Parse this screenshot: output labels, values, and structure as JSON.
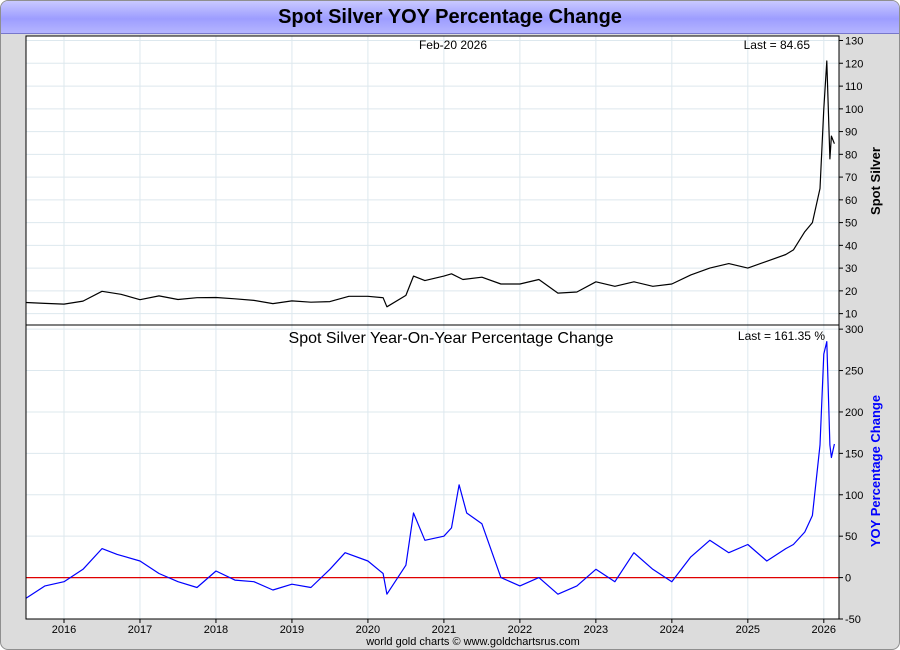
{
  "title": "Spot Silver YOY Percentage Change",
  "footer": "world gold charts © www.goldchartsrus.com",
  "chart_data": [
    {
      "type": "line",
      "ylabel": "Spot Silver",
      "date_label": "Feb-20  2026",
      "last_label": "Last = 84.65",
      "color": "#000000",
      "ylim": [
        5,
        132
      ],
      "yticks": [
        10,
        20,
        30,
        40,
        50,
        60,
        70,
        80,
        90,
        100,
        110,
        120,
        130
      ],
      "x_years": [
        "2016",
        "2017",
        "2018",
        "2019",
        "2020",
        "2021",
        "2022",
        "2023",
        "2024",
        "2025",
        "2026"
      ],
      "x": [
        2015.5,
        2015.75,
        2016.0,
        2016.25,
        2016.5,
        2016.75,
        2017.0,
        2017.25,
        2017.5,
        2017.75,
        2018.0,
        2018.25,
        2018.5,
        2018.75,
        2019.0,
        2019.25,
        2019.5,
        2019.75,
        2020.0,
        2020.2,
        2020.25,
        2020.5,
        2020.6,
        2020.75,
        2021.0,
        2021.1,
        2021.25,
        2021.5,
        2021.75,
        2022.0,
        2022.25,
        2022.5,
        2022.75,
        2023.0,
        2023.25,
        2023.5,
        2023.75,
        2024.0,
        2024.25,
        2024.5,
        2024.75,
        2025.0,
        2025.25,
        2025.5,
        2025.6,
        2025.75,
        2025.85,
        2025.95,
        2026.0,
        2026.04,
        2026.08,
        2026.1,
        2026.14
      ],
      "y": [
        14.9,
        14.5,
        14.2,
        15.5,
        19.8,
        18.5,
        16.1,
        17.8,
        16.2,
        17.0,
        17.1,
        16.5,
        15.8,
        14.4,
        15.6,
        15.0,
        15.3,
        17.6,
        17.6,
        17.0,
        13.0,
        18.0,
        26.5,
        24.5,
        26.5,
        27.5,
        25.0,
        26.0,
        23.0,
        23.0,
        25.0,
        19.0,
        19.5,
        24.0,
        22.0,
        24.0,
        22.0,
        23.0,
        27.0,
        30.0,
        32.0,
        30.0,
        33.0,
        36.0,
        38.0,
        46.0,
        50.0,
        65.0,
        100.0,
        121.0,
        78.0,
        88.0,
        84.65
      ]
    },
    {
      "type": "line",
      "title": "Spot Silver Year-On-Year Percentage Change",
      "ylabel": "YOY Percentage Change",
      "last_label": "Last =  161.35 %",
      "color": "#0000ff",
      "zero_line_color": "#e00000",
      "ylim": [
        -50,
        305
      ],
      "yticks": [
        -50,
        0,
        50,
        100,
        150,
        200,
        250,
        300
      ],
      "x": [
        2015.5,
        2015.75,
        2016.0,
        2016.25,
        2016.5,
        2016.7,
        2017.0,
        2017.25,
        2017.5,
        2017.75,
        2018.0,
        2018.25,
        2018.5,
        2018.75,
        2019.0,
        2019.25,
        2019.5,
        2019.7,
        2020.0,
        2020.2,
        2020.25,
        2020.5,
        2020.6,
        2020.75,
        2021.0,
        2021.1,
        2021.2,
        2021.3,
        2021.5,
        2021.75,
        2022.0,
        2022.25,
        2022.5,
        2022.75,
        2023.0,
        2023.25,
        2023.5,
        2023.75,
        2024.0,
        2024.25,
        2024.5,
        2024.75,
        2025.0,
        2025.25,
        2025.5,
        2025.6,
        2025.75,
        2025.85,
        2025.95,
        2026.0,
        2026.04,
        2026.08,
        2026.1,
        2026.14
      ],
      "y": [
        -25,
        -10,
        -5,
        10,
        35,
        28,
        20,
        5,
        -5,
        -12,
        8,
        -3,
        -5,
        -15,
        -8,
        -12,
        10,
        30,
        20,
        5,
        -20,
        15,
        78,
        45,
        50,
        60,
        112,
        78,
        65,
        0,
        -10,
        0,
        -20,
        -10,
        10,
        -5,
        30,
        10,
        -5,
        25,
        45,
        30,
        40,
        20,
        35,
        40,
        55,
        75,
        160,
        270,
        285,
        160,
        145,
        161.35
      ]
    }
  ]
}
